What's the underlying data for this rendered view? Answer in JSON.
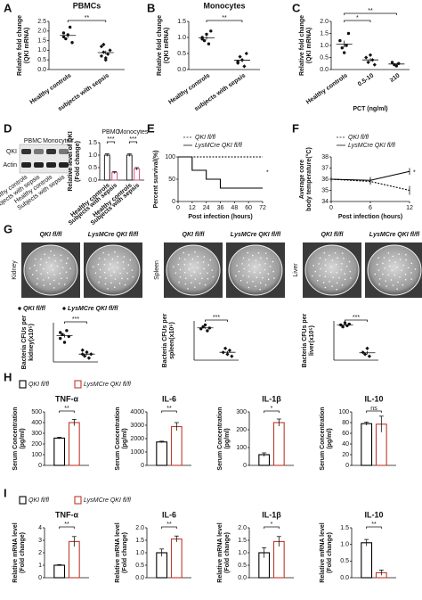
{
  "blot": {
    "bands": [
      "QKI",
      "Actin"
    ],
    "lanes": [
      "PBMC",
      "Monocytes"
    ],
    "samples": [
      "Healthy controls",
      "Subjects with sepsis",
      "Healthy controls",
      "Subjects with sepsis"
    ]
  },
  "plates": {
    "headers": [
      "QKI fl/fl",
      "LysMCre QKI fl/fl"
    ],
    "organs": [
      "Kidney",
      "Spleen",
      "Liver"
    ]
  },
  "chart_data": [
    {
      "panel": "A",
      "type": "dot",
      "title": "PBMCs",
      "ylabel": [
        "Relative fold change",
        "(QKI mRNA)"
      ],
      "categories": [
        "Healthy controls",
        "subjects with sepsis"
      ],
      "points": [
        [
          1.9,
          1.6,
          1.8,
          2.2,
          1.4,
          1.7
        ],
        [
          1.2,
          0.9,
          0.6,
          0.8,
          1.0,
          0.7,
          1.3,
          0.5
        ]
      ],
      "means": [
        1.77,
        0.88
      ],
      "errors": [
        0.12,
        0.1
      ],
      "ylim": [
        0,
        2.5
      ],
      "yticks": [
        {
          "value": 0,
          "label": "0.0"
        },
        0.5,
        {
          "value": 1,
          "label": "1.0"
        },
        1.5,
        {
          "value": 2,
          "label": "2.0"
        },
        2.5
      ],
      "significance": [
        "**"
      ]
    },
    {
      "panel": "B",
      "type": "dot",
      "title": "Monocytes",
      "ylabel": [
        "Relative fold change",
        "(QKI mRNA)"
      ],
      "categories": [
        "Healthy controls",
        "subjects with sepsis"
      ],
      "points": [
        [
          1.0,
          0.9,
          1.1,
          0.8,
          1.2,
          0.95
        ],
        [
          0.2,
          0.4,
          0.3,
          0.1,
          0.5,
          0.25
        ]
      ],
      "means": [
        0.99,
        0.29
      ],
      "errors": [
        0.06,
        0.06
      ],
      "ylim": [
        0,
        1.5
      ],
      "yticks": [
        {
          "value": 0,
          "label": "0.0"
        },
        0.5,
        {
          "value": 1,
          "label": "1.0"
        },
        1.5
      ],
      "significance": [
        "**"
      ]
    },
    {
      "panel": "C",
      "type": "dot",
      "xlabel": "PCT (ng/ml)",
      "ylabel": [
        "Relative fold change",
        "(QKI mRNA)"
      ],
      "categories": [
        "Healthy controls",
        "0.5-10",
        "≥10"
      ],
      "points": [
        [
          1.2,
          0.9,
          0.7,
          1.0,
          1.5
        ],
        [
          0.5,
          0.3,
          0.6,
          0.4,
          0.2
        ],
        [
          0.3,
          0.2,
          0.15,
          0.25
        ]
      ],
      "means": [
        1.06,
        0.4,
        0.23
      ],
      "errors": [
        0.14,
        0.07,
        0.03
      ],
      "ylim": [
        0,
        2
      ],
      "yticks": [
        {
          "value": 0,
          "label": "0.0"
        },
        0.5,
        {
          "value": 1,
          "label": "1.0"
        },
        1.5,
        {
          "value": 2,
          "label": "2.0"
        }
      ],
      "significance": [
        "*",
        "**"
      ]
    },
    {
      "panel": "D",
      "type": "bar",
      "ylabel": [
        "Relative level of QKI",
        "(Fold change)"
      ],
      "categories": [
        "PBMC",
        "Monocytes"
      ],
      "series": [
        {
          "name": "Healthy controls",
          "color": "#333333",
          "values": [
            1.0,
            1.0
          ],
          "errors": [
            0.05,
            0.05
          ]
        },
        {
          "name": "Subjects with sepsis",
          "color": "#d9607f",
          "values": [
            0.3,
            0.45
          ],
          "errors": [
            0.04,
            0.05
          ]
        }
      ],
      "ylim": [
        0,
        1.5
      ],
      "yticks": [
        {
          "value": 0,
          "label": "0.0"
        },
        0.5,
        {
          "value": 1,
          "label": "1.0"
        },
        1.5
      ],
      "significance": [
        "***",
        "***"
      ]
    },
    {
      "panel": "E",
      "type": "line",
      "step": true,
      "xlabel": "Post infection (hours)",
      "ylabel": [
        "Percent survival(%)"
      ],
      "x": [
        0,
        12,
        24,
        36,
        72
      ],
      "series": [
        {
          "name": "QKI fl/fl",
          "color": "#000000",
          "dash": true,
          "values": [
            100,
            100,
            100,
            100,
            100
          ]
        },
        {
          "name": "LysMCre QKI fl/fl",
          "color": "#000000",
          "values": [
            100,
            70,
            50,
            30,
            30
          ]
        }
      ],
      "xlim": [
        0,
        72
      ],
      "xticks": [
        0,
        12,
        24,
        36,
        48,
        60,
        72
      ],
      "ylim": [
        0,
        100
      ],
      "yticks": [
        0,
        50,
        100
      ],
      "significance": [
        "*"
      ]
    },
    {
      "panel": "F",
      "type": "line",
      "xlabel": "Post infection (hours)",
      "ylabel": [
        "Average core",
        "body temperature(°C)"
      ],
      "x": [
        0,
        6,
        12
      ],
      "series": [
        {
          "name": "QKI fl/fl",
          "color": "#000000",
          "dash": true,
          "values": [
            36.0,
            35.8,
            35.0
          ],
          "errors": [
            0.2,
            0.3,
            0.4
          ]
        },
        {
          "name": "LysMCre QKI fl/fl",
          "color": "#000000",
          "values": [
            36.0,
            35.9,
            36.7
          ],
          "errors": [
            0.2,
            0.3,
            0.3
          ]
        }
      ],
      "xlim": [
        0,
        12
      ],
      "xticks": [
        0,
        6,
        12
      ],
      "ylim": [
        34,
        38
      ],
      "yticks": [
        34,
        35,
        36,
        37,
        38
      ],
      "significance": [
        "*"
      ]
    },
    {
      "panel": "G",
      "type": "dot",
      "legend": true,
      "ylabel": [
        "Bacteria CFUs per",
        "kidney(x10⁵)"
      ],
      "categories": [
        "QKI fl/fl",
        "LysMCre QKI fl/fl"
      ],
      "points": [
        [
          6,
          7,
          5,
          8,
          6.5,
          7.5
        ],
        [
          2,
          1.5,
          2.5,
          1,
          2,
          3
        ]
      ],
      "means": [
        6.67,
        2.0
      ],
      "errors": [
        0.45,
        0.29
      ],
      "ylim": [
        0,
        10
      ],
      "significance": [
        "***"
      ]
    },
    {
      "type": "dot",
      "ylabel": [
        "Bacteria CFUs per",
        "spleen(x10⁶)"
      ],
      "points": [
        [
          8,
          8.5,
          9,
          7.5,
          8.2
        ],
        [
          2,
          3,
          1.5,
          2.5,
          1
        ]
      ],
      "means": [
        8.24,
        2.0
      ],
      "errors": [
        0.26,
        0.35
      ],
      "ylim": [
        0,
        10
      ],
      "significance": [
        "***"
      ]
    },
    {
      "type": "dot",
      "ylabel": [
        "Bacteria CFUs per",
        "liver(x10⁵)"
      ],
      "points": [
        [
          9,
          8.5,
          9.5,
          8.8,
          9.2
        ],
        [
          2,
          1.5,
          3,
          1
        ]
      ],
      "means": [
        9.0,
        1.88
      ],
      "errors": [
        0.17,
        0.43
      ],
      "ylim": [
        0,
        10
      ],
      "significance": [
        "***"
      ]
    },
    {
      "panel": "H",
      "type": "bar",
      "legend": true,
      "title": "TNF-α",
      "ylabel": [
        "Serum Concentration",
        "(pg/ml)"
      ],
      "series": [
        {
          "name": "QKI fl/fl",
          "color": "#000000",
          "values": [
            255
          ],
          "errors": [
            8
          ]
        },
        {
          "name": "LysMCre QKI fl/fl",
          "color": "#c0392b",
          "values": [
            400
          ],
          "errors": [
            30
          ]
        }
      ],
      "ylim": [
        0,
        500
      ],
      "yticks": [
        0,
        100,
        200,
        300,
        400,
        500
      ],
      "significance": [
        "**"
      ]
    },
    {
      "type": "bar",
      "title": "IL-6",
      "ylabel": [
        "Serum Concentration",
        "(pg/ml)"
      ],
      "series": [
        {
          "color": "#000000",
          "values": [
            1750
          ],
          "errors": [
            60
          ]
        },
        {
          "color": "#c0392b",
          "values": [
            2900
          ],
          "errors": [
            300
          ]
        }
      ],
      "ylim": [
        0,
        4000
      ],
      "yticks": [
        0,
        1000,
        2000,
        3000,
        4000
      ],
      "significance": [
        "**"
      ]
    },
    {
      "type": "bar",
      "title": "IL-1β",
      "ylabel": [
        "Serum Concentration",
        "(pg/ml)"
      ],
      "series": [
        {
          "color": "#000000",
          "values": [
            60
          ],
          "errors": [
            10
          ]
        },
        {
          "color": "#c0392b",
          "values": [
            240
          ],
          "errors": [
            20
          ]
        }
      ],
      "ylim": [
        0,
        300
      ],
      "yticks": [
        0,
        100,
        200,
        300
      ],
      "significance": [
        "*"
      ]
    },
    {
      "type": "bar",
      "title": "IL-10",
      "ylabel": [
        "Serum Concentration",
        "(pg/ml)"
      ],
      "series": [
        {
          "color": "#000000",
          "values": [
            78
          ],
          "errors": [
            3
          ]
        },
        {
          "color": "#c0392b",
          "values": [
            77
          ],
          "errors": [
            15
          ]
        }
      ],
      "ylim": [
        0,
        100
      ],
      "yticks": [
        0,
        20,
        40,
        60,
        80,
        100
      ],
      "significance": [
        "ns"
      ]
    },
    {
      "panel": "I",
      "type": "bar",
      "legend": true,
      "title": "TNF-α",
      "ylabel": [
        "Relative mRNA level",
        "(Fold change)"
      ],
      "series": [
        {
          "name": "QKI fl/fl",
          "color": "#000000",
          "values": [
            1.0
          ],
          "errors": [
            0.05
          ]
        },
        {
          "name": "LysMCre QKI fl/fl",
          "color": "#c0392b",
          "values": [
            2.9
          ],
          "errors": [
            0.4
          ]
        }
      ],
      "ylim": [
        0,
        4
      ],
      "yticks": [
        0,
        1,
        2,
        3,
        4
      ],
      "significance": [
        "**"
      ]
    },
    {
      "type": "bar",
      "title": "IL-6",
      "ylabel": [
        "Relative mRNA level",
        "(Fold change)"
      ],
      "series": [
        {
          "color": "#000000",
          "values": [
            1.0
          ],
          "errors": [
            0.15
          ]
        },
        {
          "color": "#c0392b",
          "values": [
            1.55
          ],
          "errors": [
            0.12
          ]
        }
      ],
      "ylim": [
        0,
        2
      ],
      "yticks": [
        {
          "value": 0,
          "label": "0.0"
        },
        0.5,
        {
          "value": 1,
          "label": "1.0"
        },
        1.5,
        {
          "value": 2,
          "label": "2.0"
        }
      ],
      "significance": [
        "**"
      ]
    },
    {
      "type": "bar",
      "title": "IL-1β",
      "ylabel": [
        "Relative mRNA level",
        "(Fold change)"
      ],
      "series": [
        {
          "color": "#000000",
          "values": [
            1.0
          ],
          "errors": [
            0.2
          ]
        },
        {
          "color": "#c0392b",
          "values": [
            1.45
          ],
          "errors": [
            0.2
          ]
        }
      ],
      "ylim": [
        0,
        2
      ],
      "yticks": [
        {
          "value": 0,
          "label": "0.0"
        },
        0.5,
        {
          "value": 1,
          "label": "1.0"
        },
        1.5,
        {
          "value": 2,
          "label": "2.0"
        }
      ],
      "significance": [
        "*"
      ]
    },
    {
      "type": "bar",
      "title": "IL-10",
      "ylabel": [
        "Relative mRNA level",
        "(Fold change)"
      ],
      "series": [
        {
          "color": "#000000",
          "values": [
            1.05
          ],
          "errors": [
            0.1
          ]
        },
        {
          "color": "#c0392b",
          "values": [
            0.15
          ],
          "errors": [
            0.08
          ]
        }
      ],
      "ylim": [
        0,
        1.5
      ],
      "yticks": [
        {
          "value": 0,
          "label": "0.0"
        },
        0.5,
        {
          "value": 1,
          "label": "1.0"
        },
        1.5
      ],
      "significance": [
        "**"
      ]
    }
  ]
}
